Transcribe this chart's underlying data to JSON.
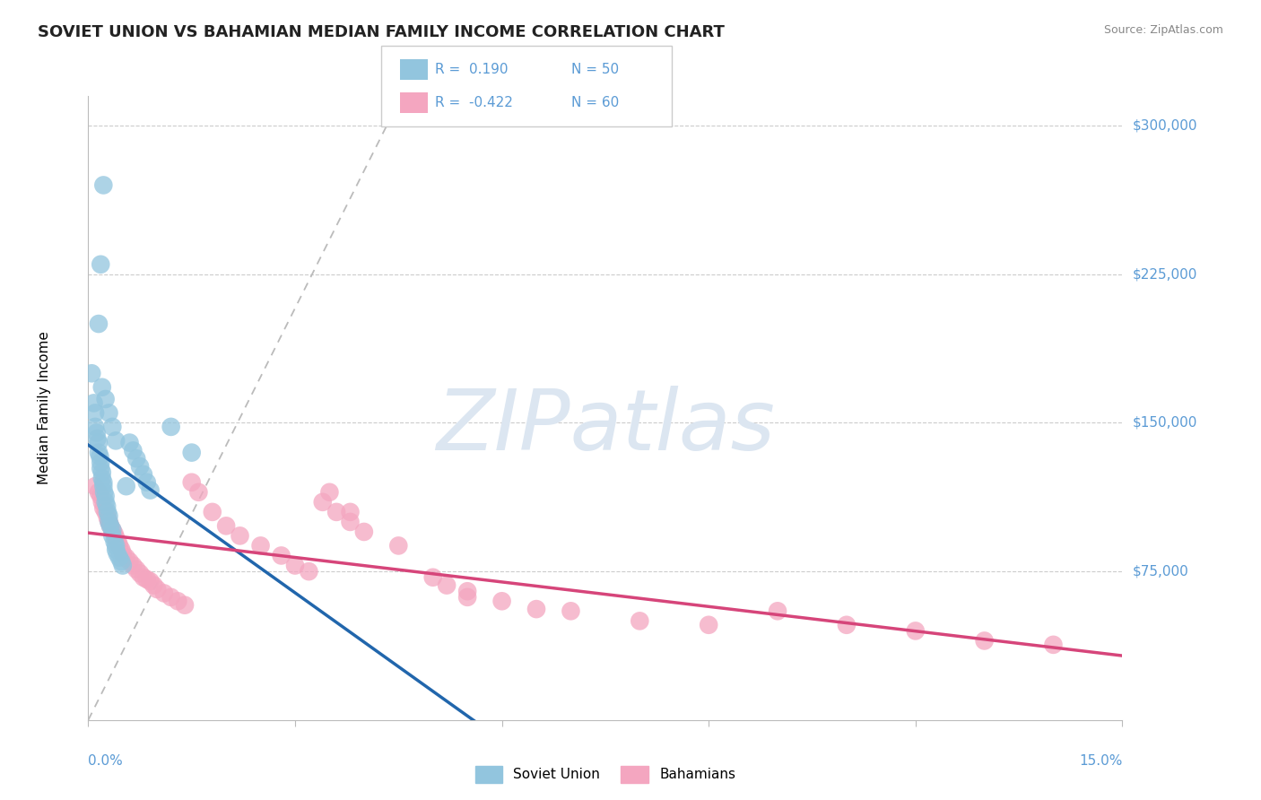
{
  "title": "SOVIET UNION VS BAHAMIAN MEDIAN FAMILY INCOME CORRELATION CHART",
  "source_text": "Source: ZipAtlas.com",
  "ylabel": "Median Family Income",
  "y_ticks": [
    0,
    75000,
    150000,
    225000,
    300000
  ],
  "y_tick_labels": [
    "",
    "$75,000",
    "$150,000",
    "$225,000",
    "$300,000"
  ],
  "x_min": 0.0,
  "x_max": 15.0,
  "y_min": 0,
  "y_max": 315000,
  "soviet_color": "#92c5de",
  "bahamas_color": "#f4a6c0",
  "soviet_line_color": "#2166ac",
  "bahamas_line_color": "#d6457a",
  "ref_line_color": "#bbbbbb",
  "axis_label_color": "#5b9bd5",
  "grid_color": "#cccccc",
  "background_color": "#ffffff",
  "title_fontsize": 13,
  "watermark_color": "#dce6f1",
  "legend_R_blue": "0.190",
  "legend_N_blue": "50",
  "legend_R_pink": "-0.422",
  "legend_N_pink": "60",
  "soviet_x": [
    0.05,
    0.08,
    0.1,
    0.1,
    0.12,
    0.13,
    0.15,
    0.15,
    0.17,
    0.18,
    0.18,
    0.2,
    0.2,
    0.22,
    0.22,
    0.23,
    0.25,
    0.25,
    0.27,
    0.28,
    0.3,
    0.3,
    0.32,
    0.35,
    0.35,
    0.38,
    0.4,
    0.4,
    0.42,
    0.45,
    0.48,
    0.5,
    0.55,
    0.6,
    0.65,
    0.7,
    0.75,
    0.8,
    0.85,
    0.9,
    0.2,
    0.25,
    0.3,
    0.35,
    0.4,
    0.15,
    0.18,
    0.22,
    1.2,
    1.5
  ],
  "soviet_y": [
    175000,
    160000,
    155000,
    148000,
    145000,
    142000,
    140000,
    135000,
    133000,
    130000,
    127000,
    125000,
    122000,
    120000,
    118000,
    115000,
    113000,
    110000,
    108000,
    105000,
    103000,
    100000,
    98000,
    96000,
    93000,
    90000,
    88000,
    86000,
    84000,
    82000,
    80000,
    78000,
    118000,
    140000,
    136000,
    132000,
    128000,
    124000,
    120000,
    116000,
    168000,
    162000,
    155000,
    148000,
    141000,
    200000,
    230000,
    270000,
    148000,
    135000
  ],
  "bahamas_x": [
    0.1,
    0.15,
    0.18,
    0.2,
    0.22,
    0.25,
    0.28,
    0.3,
    0.32,
    0.35,
    0.38,
    0.4,
    0.43,
    0.45,
    0.48,
    0.5,
    0.55,
    0.6,
    0.65,
    0.7,
    0.75,
    0.8,
    0.85,
    0.9,
    0.95,
    1.0,
    1.1,
    1.2,
    1.3,
    1.4,
    1.5,
    1.6,
    1.8,
    2.0,
    2.2,
    2.5,
    2.8,
    3.0,
    3.2,
    3.5,
    3.8,
    4.0,
    4.5,
    5.0,
    5.2,
    5.5,
    6.0,
    6.5,
    7.0,
    8.0,
    9.0,
    10.0,
    11.0,
    12.0,
    13.0,
    14.0,
    3.4,
    3.6,
    3.8,
    5.5
  ],
  "bahamas_y": [
    118000,
    115000,
    113000,
    110000,
    107000,
    105000,
    102000,
    100000,
    98000,
    96000,
    94000,
    92000,
    90000,
    88000,
    86000,
    84000,
    82000,
    80000,
    78000,
    76000,
    74000,
    72000,
    71000,
    70000,
    68000,
    66000,
    64000,
    62000,
    60000,
    58000,
    120000,
    115000,
    105000,
    98000,
    93000,
    88000,
    83000,
    78000,
    75000,
    115000,
    105000,
    95000,
    88000,
    72000,
    68000,
    65000,
    60000,
    56000,
    55000,
    50000,
    48000,
    55000,
    48000,
    45000,
    40000,
    38000,
    110000,
    105000,
    100000,
    62000
  ]
}
